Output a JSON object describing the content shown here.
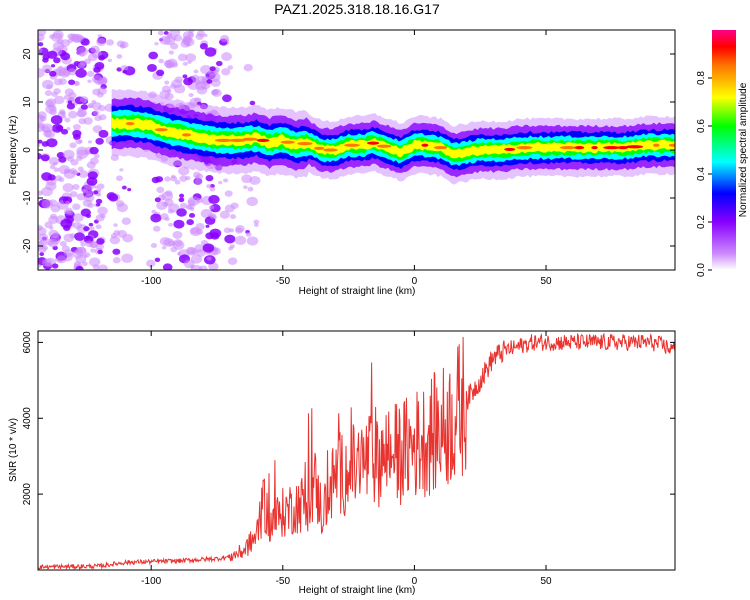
{
  "chart_data": [
    {
      "type": "heatmap",
      "title": "PAZ1.2025.318.18.16.G17",
      "xlabel": "Height of straight line (km)",
      "ylabel": "Frequency (Hz)",
      "xlim": [
        -143,
        99
      ],
      "ylim": [
        -25,
        25
      ],
      "xticks": [
        -100,
        -50,
        0,
        50
      ],
      "yticks": [
        -20,
        -10,
        0,
        10,
        20
      ],
      "colorbar": {
        "label": "Normalized spectral amplitude",
        "range": [
          0,
          1
        ],
        "ticks": [
          0.0,
          0.2,
          0.4,
          0.6,
          0.8
        ]
      },
      "ridge": {
        "description": "dominant frequency track",
        "x": [
          -112,
          -105,
          -100,
          -95,
          -90,
          -85,
          -80,
          -75,
          -70,
          -65,
          -60,
          -55,
          -50,
          -45,
          -40,
          -35,
          -30,
          -25,
          -20,
          -15,
          -10,
          -5,
          0,
          5,
          10,
          15,
          20,
          25,
          30,
          35,
          40,
          50,
          60,
          70,
          80,
          90,
          99
        ],
        "y": [
          5.5,
          5.5,
          5,
          4,
          3.5,
          3,
          2.5,
          2,
          2,
          2,
          2.5,
          1.5,
          2,
          1,
          1.5,
          0,
          0,
          1,
          1,
          1.5,
          0.5,
          -0.5,
          1,
          1,
          0.5,
          -1,
          -0.5,
          0,
          0,
          0,
          0.5,
          0.5,
          0.5,
          0.5,
          0.5,
          1,
          1
        ]
      }
    },
    {
      "type": "line",
      "title": "",
      "xlabel": "Height of straight line (km)",
      "ylabel": "SNR (10 * v/v)",
      "xlim": [
        -143,
        99
      ],
      "ylim": [
        0,
        6300
      ],
      "xticks": [
        -100,
        -50,
        0,
        50
      ],
      "yticks": [
        2000,
        4000,
        6000
      ],
      "series": [
        {
          "name": "SNR",
          "color": "#e8332f",
          "x": [
            -143,
            -130,
            -120,
            -110,
            -100,
            -90,
            -80,
            -75,
            -70,
            -65,
            -60,
            -57,
            -55,
            -50,
            -45,
            -40,
            -38,
            -35,
            -30,
            -25,
            -20,
            -15,
            -10,
            -5,
            0,
            5,
            10,
            15,
            20,
            25,
            30,
            35,
            40,
            45,
            50,
            60,
            70,
            80,
            90,
            95,
            99
          ],
          "values": [
            80,
            90,
            100,
            200,
            220,
            240,
            280,
            300,
            350,
            500,
            900,
            1800,
            1200,
            1500,
            1700,
            1800,
            2300,
            1500,
            2500,
            2600,
            2800,
            3000,
            3000,
            3100,
            3300,
            3500,
            3700,
            4000,
            4500,
            5000,
            5600,
            5800,
            5900,
            6000,
            6000,
            6000,
            6000,
            6000,
            6000,
            5900,
            5800
          ]
        }
      ]
    }
  ]
}
